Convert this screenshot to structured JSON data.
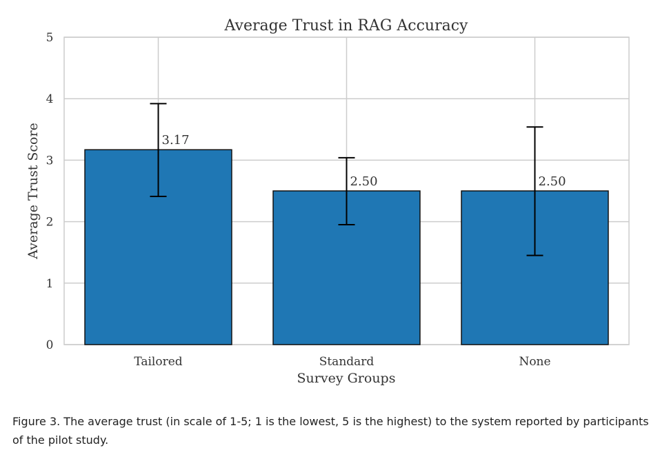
{
  "chart_data": {
    "type": "bar",
    "title": "Average Trust in RAG Accuracy",
    "xlabel": "Survey Groups",
    "ylabel": "Average Trust Score",
    "categories": [
      "Tailored",
      "Standard",
      "None"
    ],
    "values": [
      3.17,
      2.5,
      2.5
    ],
    "value_labels": [
      "3.17",
      "2.50",
      "2.50"
    ],
    "error_low": [
      2.41,
      1.95,
      1.45
    ],
    "error_high": [
      3.92,
      3.04,
      3.54
    ],
    "ylim": [
      0,
      5
    ],
    "yticks": [
      "0",
      "1",
      "2",
      "3",
      "4",
      "5"
    ],
    "grid": true,
    "bar_color": "#1f77b4"
  },
  "caption": "Figure 3. The average trust (in scale of 1-5; 1 is the lowest, 5 is the highest) to the system reported by participants of the pilot study."
}
